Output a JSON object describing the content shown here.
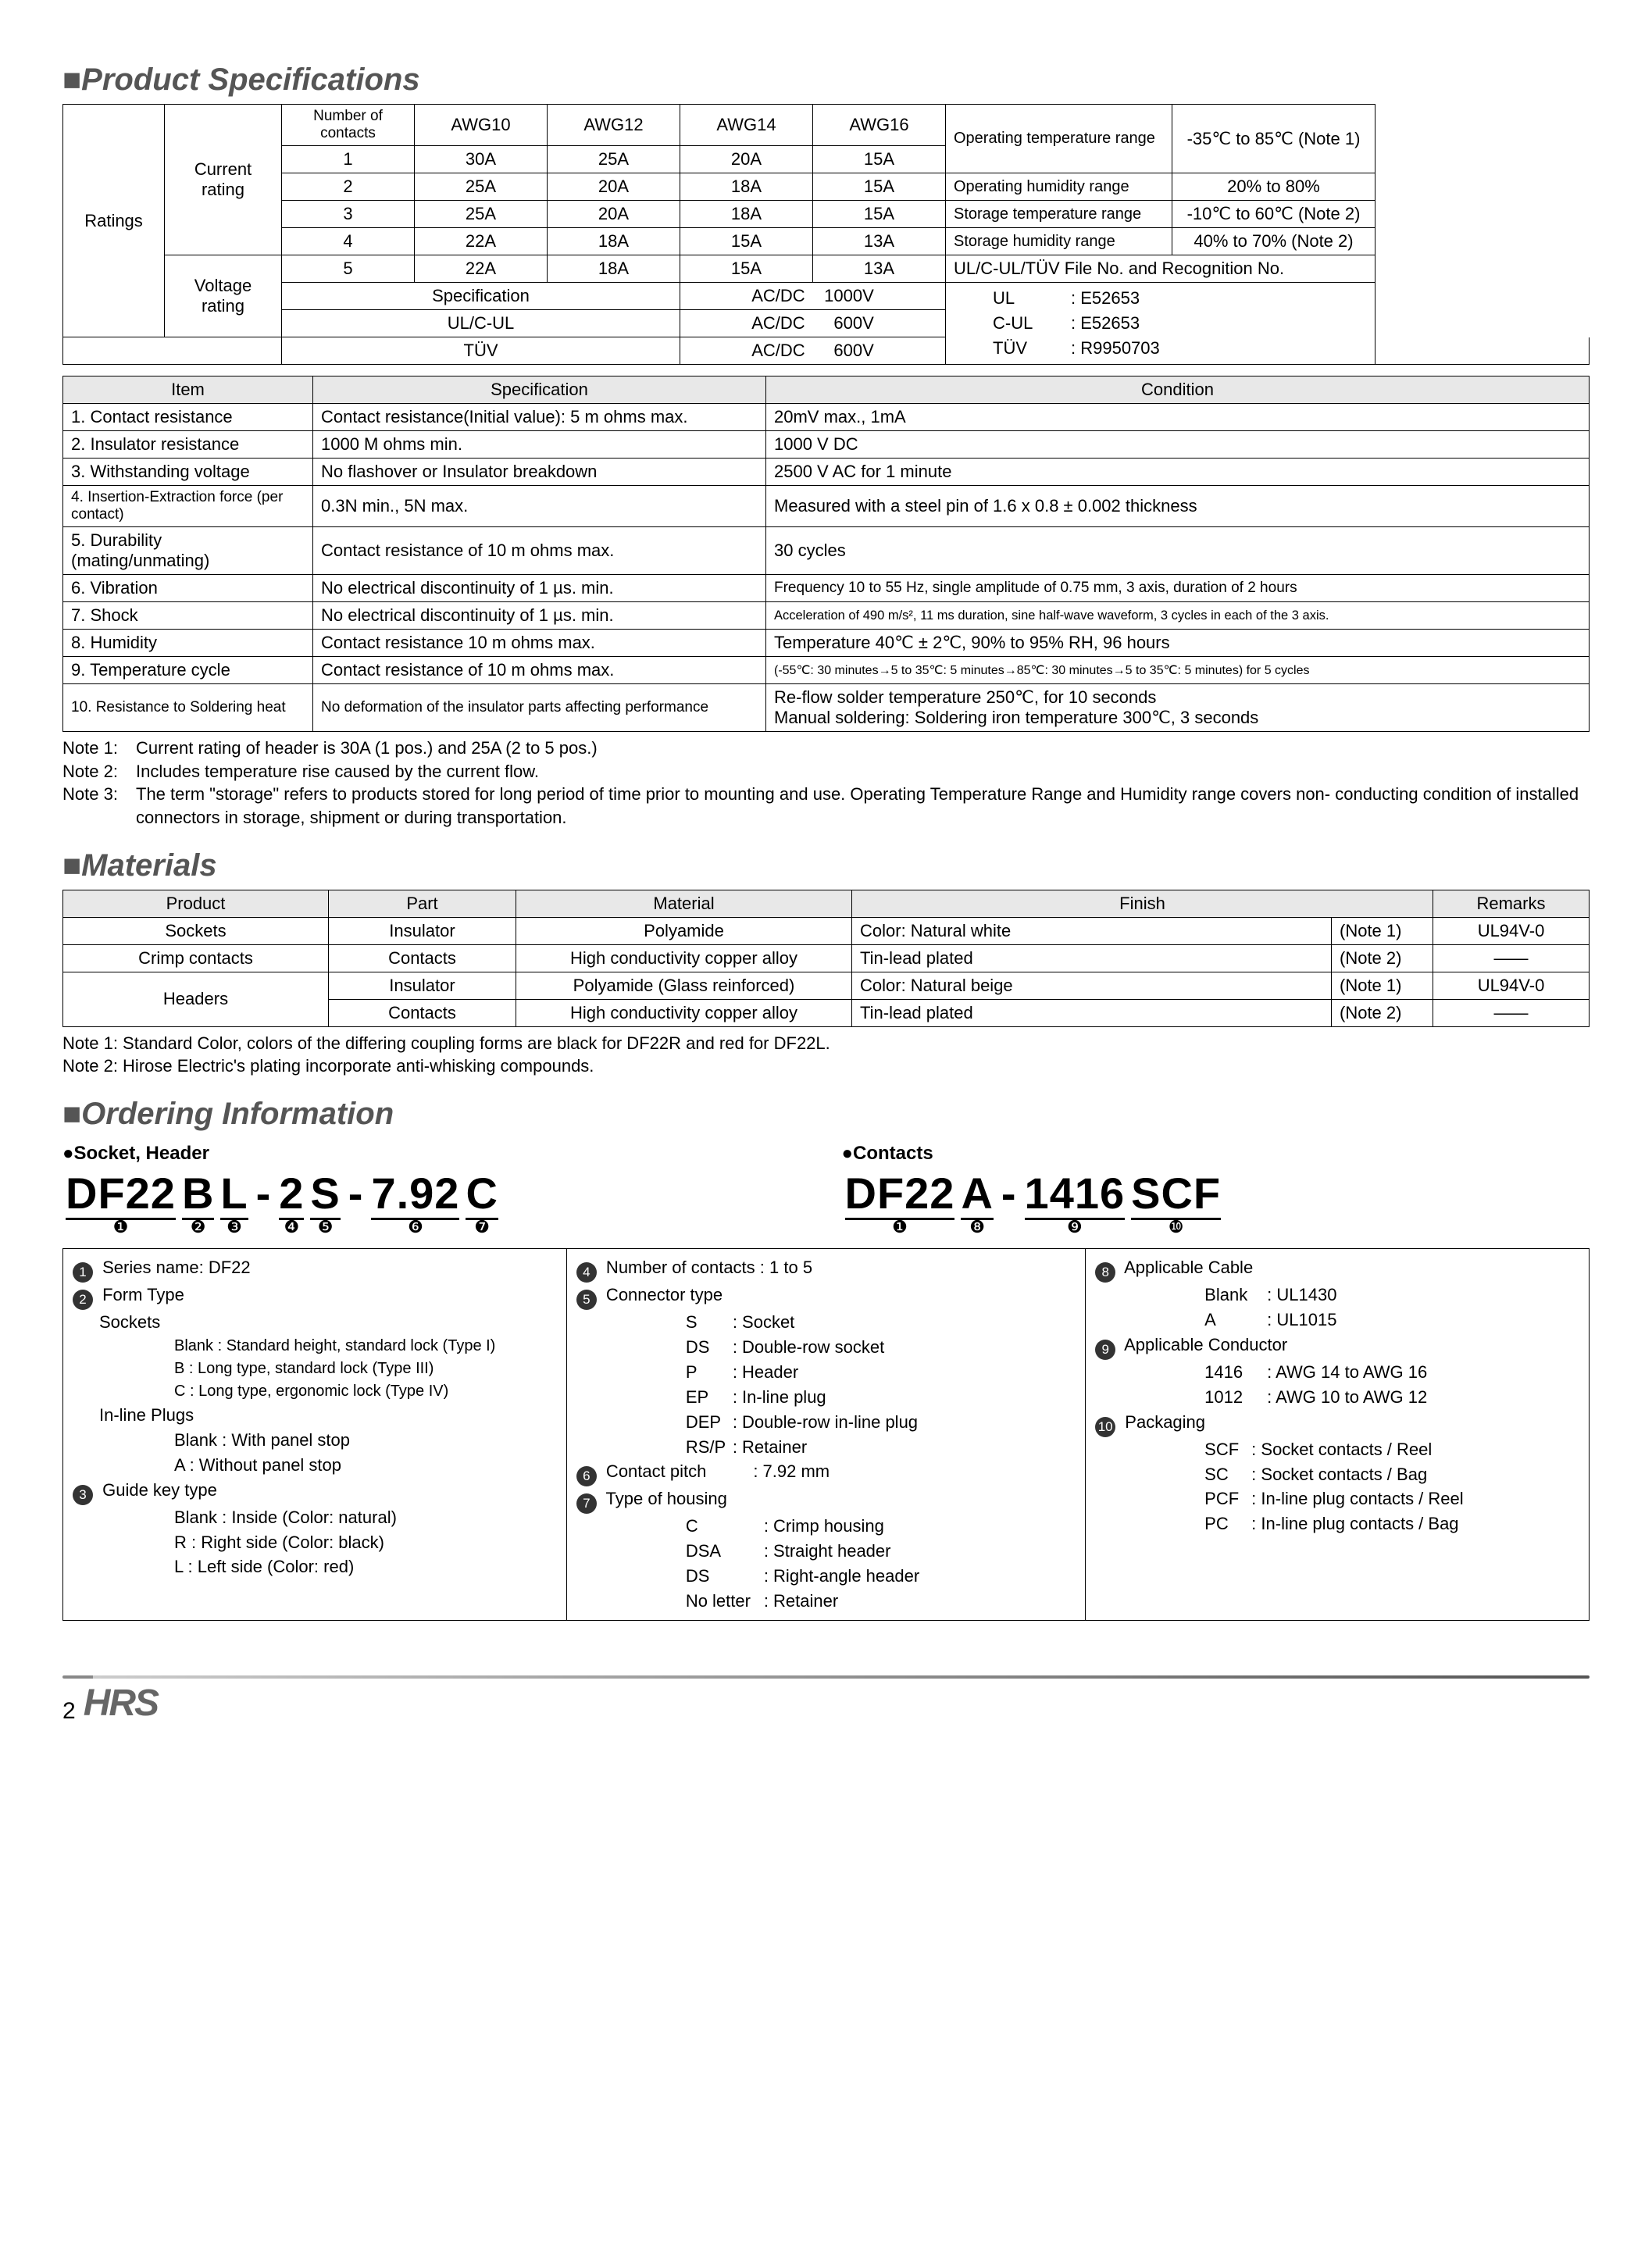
{
  "titles": {
    "spec": "■Product Specifications",
    "materials": "■Materials",
    "ordering": "■Ordering Information"
  },
  "ratings": {
    "row_label": "Ratings",
    "current_label": "Current rating",
    "voltage_label": "Voltage rating",
    "col_head": "Number of contacts",
    "awg_cols": [
      "AWG10",
      "AWG12",
      "AWG14",
      "AWG16"
    ],
    "rows": [
      {
        "n": "1",
        "cells": [
          "30A",
          "25A",
          "20A",
          "15A"
        ]
      },
      {
        "n": "2",
        "cells": [
          "25A",
          "20A",
          "18A",
          "15A"
        ]
      },
      {
        "n": "3",
        "cells": [
          "25A",
          "20A",
          "18A",
          "15A"
        ]
      },
      {
        "n": "4",
        "cells": [
          "22A",
          "18A",
          "15A",
          "13A"
        ]
      },
      {
        "n": "5",
        "cells": [
          "22A",
          "18A",
          "15A",
          "13A"
        ]
      }
    ],
    "voltage_rows": [
      {
        "spec": "Specification",
        "val": "AC/DC    1000V"
      },
      {
        "spec": "UL/C-UL",
        "val": "AC/DC      600V"
      },
      {
        "spec": "TÜV",
        "val": "AC/DC      600V"
      }
    ],
    "env": [
      {
        "l": "Operating temperature range",
        "r": "-35℃ to 85℃ (Note 1)"
      },
      {
        "l": "Operating humidity range",
        "r": "20% to 80%"
      },
      {
        "l": "Storage temperature range",
        "r": "-10℃ to 60℃ (Note 2)"
      },
      {
        "l": "Storage humidity range",
        "r": "40% to 70% (Note 2)"
      }
    ],
    "certs_head": "UL/C-UL/TÜV    File No. and Recognition No.",
    "certs": [
      {
        "l": "UL",
        "r": ": E52653"
      },
      {
        "l": "C-UL",
        "r": ": E52653"
      },
      {
        "l": "TÜV",
        "r": ": R9950703"
      }
    ]
  },
  "spec_table": {
    "head": [
      "Item",
      "Specification",
      "Condition"
    ],
    "rows": [
      [
        "1. Contact resistance",
        "Contact resistance(Initial value): 5 m ohms max.",
        "20mV max., 1mA"
      ],
      [
        "2. Insulator resistance",
        "1000 M ohms min.",
        "1000 V DC"
      ],
      [
        "3. Withstanding voltage",
        "No flashover or Insulator breakdown",
        "2500 V AC for 1 minute"
      ],
      [
        "4. Insertion-Extraction force (per contact)",
        "0.3N min., 5N max.",
        "Measured with a steel pin of 1.6 x 0.8 ± 0.002 thickness"
      ],
      [
        "5. Durability (mating/unmating)",
        "Contact resistance of 10 m ohms max.",
        "30 cycles"
      ],
      [
        "6. Vibration",
        "No electrical discontinuity of 1 µs. min.",
        "Frequency 10 to 55 Hz, single amplitude of 0.75 mm, 3 axis, duration of 2 hours"
      ],
      [
        "7. Shock",
        "No electrical discontinuity of 1 µs. min.",
        "Acceleration of 490 m/s², 11 ms duration, sine half-wave waveform, 3 cycles in each of the 3 axis."
      ],
      [
        "8. Humidity",
        "Contact resistance 10 m ohms max.",
        "Temperature 40℃ ± 2℃, 90% to 95% RH, 96 hours"
      ],
      [
        "9. Temperature cycle",
        "Contact resistance of 10 m ohms max.",
        "(-55℃: 30 minutes→5 to 35℃: 5 minutes→85℃: 30 minutes→5 to 35℃: 5 minutes) for 5 cycles"
      ],
      [
        "10. Resistance to Soldering heat",
        "No deformation of the insulator parts affecting performance",
        "Re-flow solder temperature 250℃, for 10 seconds\nManual soldering: Soldering iron temperature 300℃, 3 seconds"
      ]
    ]
  },
  "spec_notes": [
    {
      "lbl": "Note 1:",
      "txt": "Current rating of header is 30A (1 pos.) and 25A (2 to 5 pos.)"
    },
    {
      "lbl": "Note 2:",
      "txt": "Includes temperature rise caused by the current flow."
    },
    {
      "lbl": "Note 3:",
      "txt": "The term \"storage\" refers to products stored for long period of time prior to mounting and use. Operating Temperature Range and Humidity range covers non- conducting condition of installed connectors in storage, shipment or during transportation."
    }
  ],
  "materials": {
    "head": [
      "Product",
      "Part",
      "Material",
      "Finish",
      "",
      "Remarks"
    ],
    "finish_merge": true,
    "rows": [
      [
        "Sockets",
        "Insulator",
        "Polyamide",
        "Color: Natural white",
        "(Note 1)",
        "UL94V-0"
      ],
      [
        "Crimp contacts",
        "Contacts",
        "High conductivity copper alloy",
        "Tin-lead plated",
        "(Note 2)",
        "——"
      ],
      [
        "Headers",
        "Insulator",
        "Polyamide (Glass reinforced)",
        "Color: Natural beige",
        "(Note 1)",
        "UL94V-0"
      ],
      [
        "",
        "Contacts",
        "High conductivity copper alloy",
        "Tin-lead plated",
        "(Note 2)",
        "——"
      ]
    ],
    "notes": [
      "Note 1: Standard Color, colors of the differing coupling forms are black for DF22R and red for DF22L.",
      "Note 2: Hirose Electric's plating incorporate anti-whisking compounds."
    ]
  },
  "ordering": {
    "left_label": "●Socket, Header",
    "right_label": "●Contacts",
    "left_segs": [
      "DF22",
      "B",
      "L",
      "-",
      "2",
      "S",
      "-",
      "7.92",
      "C"
    ],
    "left_nums": [
      "❶",
      "❷",
      "❸",
      "",
      "❹",
      "❺",
      "",
      "❻",
      "❼"
    ],
    "right_segs": [
      "DF22",
      "A",
      "-",
      "1416",
      "SCF"
    ],
    "right_nums": [
      "❶",
      "❽",
      "",
      "❾",
      "❿"
    ],
    "table": {
      "c1": {
        "h1": "Series name: DF22",
        "h2": "Form Type",
        "sockets_h": "Sockets",
        "sockets": [
          "Blank : Standard height, standard lock (Type I)",
          "B : Long type, standard lock (Type III)",
          "C : Long type, ergonomic lock (Type IV)"
        ],
        "plugs_h": "In-line Plugs",
        "plugs": [
          "Blank : With panel stop",
          "A : Without panel stop"
        ],
        "h3": "Guide key type",
        "guide": [
          "Blank : Inside (Color: natural)",
          "R : Right side (Color: black)",
          "L : Left side (Color: red)"
        ]
      },
      "c2": {
        "h4": "Number of contacts : 1 to 5",
        "h5": "Connector type",
        "ctype": [
          [
            "S",
            ": Socket"
          ],
          [
            "DS",
            ": Double-row socket"
          ],
          [
            "P",
            ": Header"
          ],
          [
            "EP",
            ": In-line plug"
          ],
          [
            "DEP",
            ": Double-row in-line plug"
          ],
          [
            "RS/P",
            ": Retainer"
          ]
        ],
        "h6": "Contact pitch",
        "pitch": ": 7.92 mm",
        "h7": "Type of housing",
        "housing": [
          [
            "C",
            ": Crimp housing"
          ],
          [
            "DSA",
            ": Straight header"
          ],
          [
            "DS",
            ": Right-angle header"
          ],
          [
            "No letter",
            ": Retainer"
          ]
        ]
      },
      "c3": {
        "h8": "Applicable Cable",
        "cable": [
          [
            "Blank",
            ": UL1430"
          ],
          [
            "A",
            ": UL1015"
          ]
        ],
        "h9": "Applicable Conductor",
        "cond": [
          [
            "1416",
            ": AWG 14 to AWG 16"
          ],
          [
            "1012",
            ": AWG 10 to AWG 12"
          ]
        ],
        "h10": "Packaging",
        "pack": [
          [
            "SCF",
            ": Socket contacts / Reel"
          ],
          [
            "SC",
            ": Socket contacts / Bag"
          ],
          [
            "PCF",
            ": In-line plug contacts / Reel"
          ],
          [
            "PC",
            ": In-line plug contacts / Bag"
          ]
        ]
      }
    }
  },
  "circles": [
    "❶",
    "❷",
    "❸",
    "❹",
    "❺",
    "❻",
    "❼",
    "❽",
    "❾",
    "❿"
  ],
  "page": "2",
  "logo": "HRS"
}
